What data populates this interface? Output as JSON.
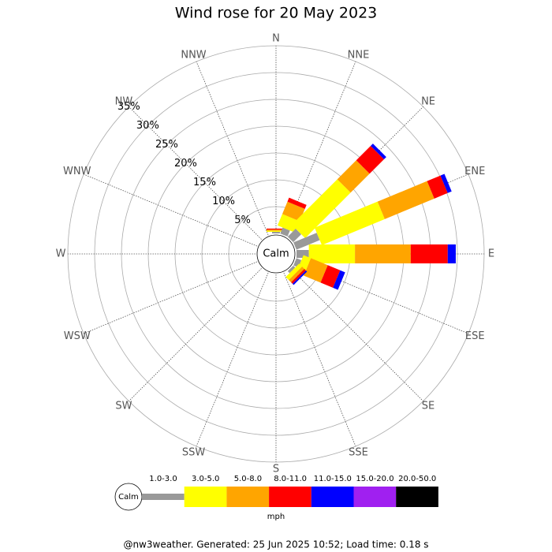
{
  "chart_data": {
    "type": "windrose",
    "title": "Wind rose for 20 May 2023",
    "categories": [
      "N",
      "NNE",
      "NE",
      "ENE",
      "E",
      "ESE",
      "SE",
      "SSE",
      "S",
      "SSW",
      "SW",
      "WSW",
      "W",
      "WNW",
      "NW",
      "NNW"
    ],
    "calm_label": "Calm",
    "unit": "mph",
    "footer": "@nw3weather. Generated: 25 Jun 2025 10:52; Load time: 0.18 s",
    "ylim": [
      0,
      35
    ],
    "yticks": [
      {
        "value": 5,
        "label": "5%"
      },
      {
        "value": 10,
        "label": "10%"
      },
      {
        "value": 15,
        "label": "15%"
      },
      {
        "value": 20,
        "label": "20%"
      },
      {
        "value": 25,
        "label": "25%"
      },
      {
        "value": 30,
        "label": "30%"
      },
      {
        "value": 35,
        "label": "35%"
      }
    ],
    "series": [
      {
        "name": "1.0-3.0",
        "color": "#999999",
        "values": [
          0.3,
          1.2,
          2.1,
          4.7,
          2.3,
          1.0,
          0.5,
          0,
          0,
          0,
          0,
          0,
          0,
          0,
          0,
          0
        ]
      },
      {
        "name": "3.0-5.0",
        "color": "#ffff00",
        "values": [
          0.2,
          2.3,
          12.0,
          12.7,
          8.6,
          1.5,
          0.8,
          0,
          0,
          0,
          0,
          0,
          0,
          0,
          0,
          0
        ]
      },
      {
        "name": "5.0-8.0",
        "color": "#ffa500",
        "values": [
          0.2,
          2.5,
          5.0,
          10.0,
          10.4,
          3.4,
          0.6,
          0,
          0,
          0,
          0,
          0,
          0,
          0,
          0,
          0
        ]
      },
      {
        "name": "8.0-11.0",
        "color": "#ff0000",
        "values": [
          0.2,
          0.8,
          3.8,
          2.7,
          6.9,
          2.5,
          0.4,
          0,
          0,
          0,
          0,
          0,
          0,
          0,
          0,
          0
        ]
      },
      {
        "name": "11.0-15.0",
        "color": "#0000ff",
        "values": [
          0,
          0,
          0.6,
          0.8,
          1.5,
          1.0,
          0.3,
          0,
          0,
          0,
          0,
          0,
          0,
          0,
          0,
          0
        ]
      },
      {
        "name": "15.0-20.0",
        "color": "#a020f0",
        "values": [
          0,
          0,
          0,
          0,
          0,
          0,
          0,
          0,
          0,
          0,
          0,
          0,
          0,
          0,
          0,
          0
        ]
      },
      {
        "name": "20.0-50.0",
        "color": "#000000",
        "values": [
          0,
          0,
          0,
          0,
          0,
          0,
          0,
          0,
          0,
          0,
          0,
          0,
          0,
          0,
          0,
          0
        ]
      }
    ]
  }
}
